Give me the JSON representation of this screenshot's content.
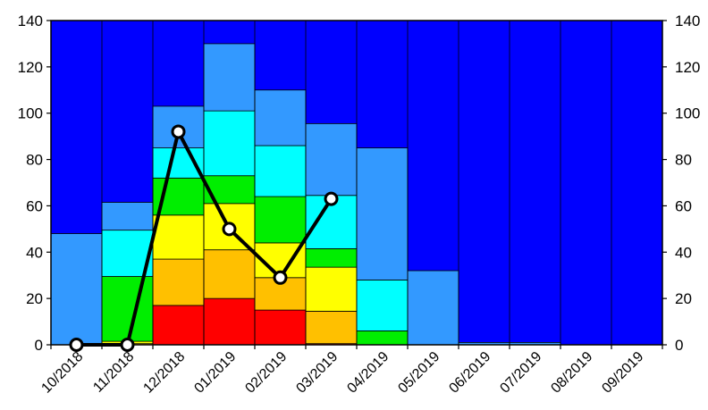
{
  "chart_data": {
    "type": "bar",
    "stacked": true,
    "categories": [
      "10/2018",
      "11/2018",
      "12/2018",
      "01/2019",
      "02/2019",
      "03/2019",
      "04/2019",
      "05/2019",
      "06/2019",
      "07/2019",
      "08/2019",
      "09/2019"
    ],
    "ylim": [
      0,
      140
    ],
    "yticks": [
      0,
      20,
      40,
      60,
      80,
      100,
      120,
      140
    ],
    "ytick_labels": [
      "0",
      "20",
      "40",
      "60",
      "80",
      "100",
      "120",
      "140"
    ],
    "secondary_ylim": [
      0,
      140
    ],
    "secondary_yticks": [
      0,
      20,
      40,
      60,
      80,
      100,
      120,
      140
    ],
    "secondary_ytick_labels": [
      "0",
      "20",
      "40",
      "60",
      "80",
      "100",
      "120",
      "140"
    ],
    "grid": false,
    "legend": "none",
    "background_color": "#0000ff",
    "series": [
      {
        "color": "#ff0000",
        "values": [
          0,
          0,
          17,
          20,
          15,
          0.5,
          0,
          0,
          0,
          0,
          0,
          0
        ]
      },
      {
        "color": "#ffc000",
        "values": [
          0,
          0.5,
          20,
          21,
          14,
          14,
          0,
          0,
          0,
          0,
          0,
          0
        ]
      },
      {
        "color": "#ffff00",
        "values": [
          0,
          1,
          19,
          20,
          15,
          19,
          0,
          0,
          0,
          0,
          0,
          0
        ]
      },
      {
        "color": "#00ee00",
        "values": [
          0,
          28,
          16,
          12,
          20,
          8,
          6,
          0,
          0,
          0,
          0,
          0
        ]
      },
      {
        "color": "#00ffff",
        "values": [
          0,
          20,
          13,
          28,
          22,
          23,
          22,
          0,
          0,
          0,
          0,
          0
        ]
      },
      {
        "color": "#3399ff",
        "values": [
          48,
          12,
          18,
          29,
          24,
          31,
          57,
          32,
          1,
          1,
          0,
          0
        ]
      }
    ],
    "line_series": {
      "color": "#000000",
      "marker_fill": "#ffffff",
      "values": [
        0,
        0,
        92,
        50,
        29,
        63,
        null,
        null,
        null,
        null,
        null,
        null
      ]
    }
  }
}
